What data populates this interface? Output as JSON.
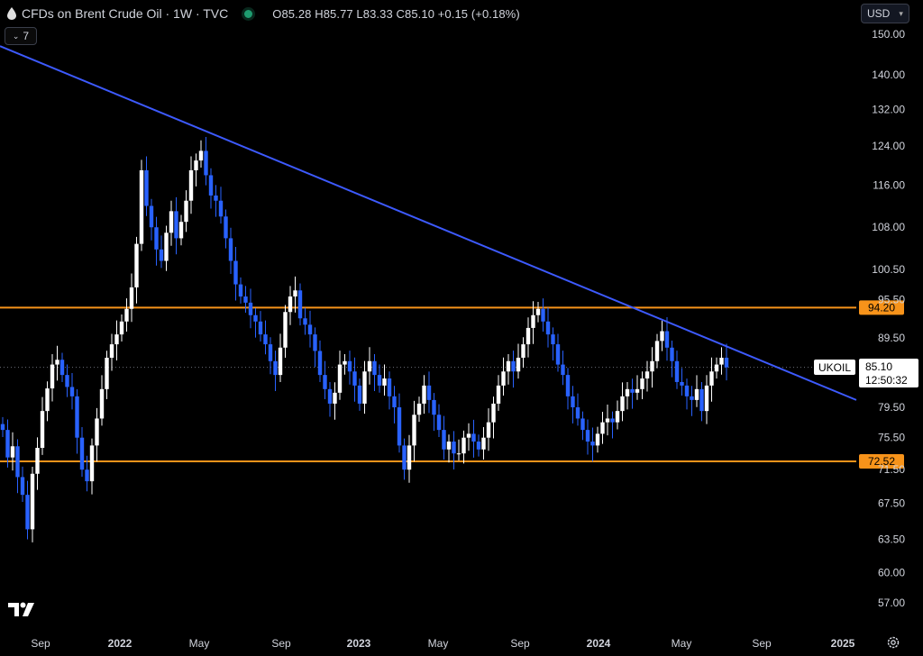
{
  "header": {
    "title": "CFDs on Brent Crude Oil · 1W · TVC",
    "ohlc": "O85.28 H85.77 L83.33 C85.10 +0.15 (+0.18%)",
    "indicator_count": "7",
    "currency": "USD"
  },
  "price_label": {
    "symbol": "UKOIL",
    "price": "85.10",
    "countdown": "12:50:32"
  },
  "levels": [
    {
      "label": "94.20",
      "value": 94.2,
      "color": "#f7931a"
    },
    {
      "label": "72.52",
      "value": 72.52,
      "color": "#f7931a"
    }
  ],
  "colors": {
    "up": "#ffffff",
    "down": "#2962ff",
    "trendline": "#3d5afe",
    "level": "#f7931a",
    "background": "#000000",
    "text": "#d1d4dc"
  },
  "chart_data": {
    "type": "candlestick",
    "y_axis": {
      "scale": "log",
      "ticks": [
        "150.00",
        "140.00",
        "132.00",
        "124.00",
        "116.00",
        "108.00",
        "100.50",
        "95.50",
        "89.50",
        "85.10",
        "79.50",
        "75.50",
        "71.50",
        "67.50",
        "63.50",
        "60.00",
        "57.00"
      ],
      "tick_values": [
        150,
        140,
        132,
        124,
        116,
        108,
        100.5,
        95.5,
        89.5,
        85.1,
        79.5,
        75.5,
        71.5,
        67.5,
        63.5,
        60,
        57
      ]
    },
    "x_axis": {
      "labels": [
        "Sep",
        "2022",
        "May",
        "Sep",
        "2023",
        "May",
        "Sep",
        "2024",
        "May",
        "Sep",
        "2025"
      ],
      "bold": [
        false,
        true,
        false,
        false,
        true,
        false,
        false,
        true,
        false,
        false,
        true
      ]
    },
    "trendline": [
      {
        "date": "2021-07",
        "price": 147
      },
      {
        "date": "2024-12",
        "price": 80.5
      }
    ],
    "series_close": [
      76.5,
      73.0,
      74.4,
      70.6,
      68.5,
      64.6,
      71.0,
      74.2,
      79.0,
      82.1,
      85.5,
      86.2,
      84.0,
      82.3,
      81.0,
      75.5,
      71.5,
      70.1,
      74.5,
      78.0,
      82.0,
      86.5,
      88.5,
      90.0,
      92.0,
      94.0,
      97.5,
      105.0,
      119.0,
      112.0,
      108.0,
      104.0,
      102.0,
      107.0,
      111.0,
      106.0,
      109.0,
      113.0,
      119.0,
      121.0,
      123.0,
      118.0,
      114.0,
      113.0,
      110.0,
      106.0,
      102.0,
      98.0,
      96.0,
      95.0,
      93.0,
      92.0,
      90.0,
      88.5,
      86.0,
      84.0,
      88.0,
      93.5,
      96.0,
      97.0,
      92.5,
      91.5,
      90.0,
      87.5,
      84.0,
      82.0,
      80.0,
      81.5,
      85.5,
      86.0,
      84.5,
      82.5,
      80.0,
      84.5,
      86.0,
      84.0,
      82.5,
      83.5,
      81.0,
      79.5,
      74.5,
      71.5,
      74.5,
      78.5,
      80.0,
      82.5,
      80.5,
      78.5,
      76.5,
      74.0,
      75.0,
      73.5,
      73.5,
      75.5,
      76.0,
      75.0,
      74.0,
      75.5,
      77.5,
      80.0,
      82.5,
      84.5,
      86.0,
      84.5,
      86.5,
      88.5,
      91.0,
      93.0,
      94.0,
      92.0,
      90.0,
      88.5,
      85.5,
      84.0,
      81.0,
      79.5,
      78.0,
      76.5,
      75.0,
      74.5,
      76.0,
      77.5,
      78.0,
      77.5,
      79.0,
      81.0,
      82.0,
      81.5,
      82.0,
      83.5,
      84.5,
      86.0,
      89.0,
      90.5,
      88.0,
      86.0,
      83.0,
      82.5,
      81.0,
      80.5,
      82.0,
      79.0,
      82.5,
      84.5,
      85.5,
      86.5,
      85.1
    ]
  }
}
